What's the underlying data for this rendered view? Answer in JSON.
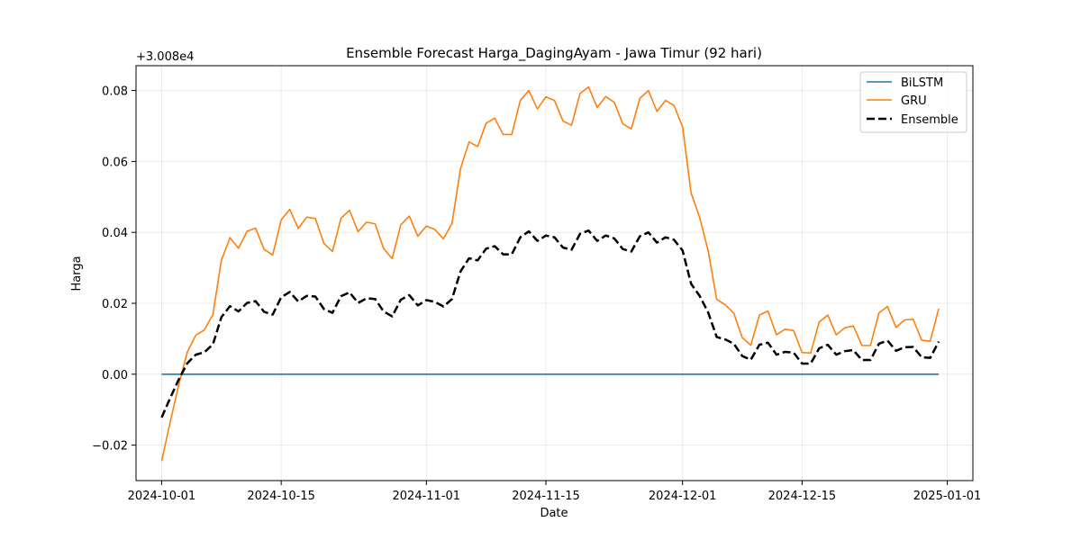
{
  "chart_data": {
    "type": "line",
    "title": "Ensemble Forecast Harga_DagingAyam - Jawa Timur (92 hari)",
    "xlabel": "Date",
    "ylabel": "Harga",
    "offset_label": "+3.008e4",
    "x_start": "2024-10-01",
    "x_ticks": [
      "2024-10-01",
      "2024-10-15",
      "2024-11-01",
      "2024-11-15",
      "2024-12-01",
      "2024-12-15",
      "2025-01-01"
    ],
    "y_ticks": [
      "−0.02",
      "0.00",
      "0.02",
      "0.04",
      "0.06",
      "0.08"
    ],
    "ylim": [
      -0.03,
      0.087
    ],
    "xlim": [
      "2024-09-28",
      "2025-01-04"
    ],
    "grid": true,
    "legend_position": "upper right",
    "series": [
      {
        "name": "BiLSTM",
        "color": "#1f77b4",
        "style": "solid",
        "values": [
          0,
          0,
          0,
          0,
          0,
          0,
          0,
          0,
          0,
          0,
          0,
          0,
          0,
          0,
          0,
          0,
          0,
          0,
          0,
          0,
          0,
          0,
          0,
          0,
          0,
          0,
          0,
          0,
          0,
          0,
          0,
          0,
          0,
          0,
          0,
          0,
          0,
          0,
          0,
          0,
          0,
          0,
          0,
          0,
          0,
          0,
          0,
          0,
          0,
          0,
          0,
          0,
          0,
          0,
          0,
          0,
          0,
          0,
          0,
          0,
          0,
          0,
          0,
          0,
          0,
          0,
          0,
          0,
          0,
          0,
          0,
          0,
          0,
          0,
          0,
          0,
          0,
          0,
          0,
          0,
          0,
          0,
          0,
          0,
          0,
          0,
          0,
          0,
          0,
          0,
          0,
          0
        ]
      },
      {
        "name": "GRU",
        "color": "#ff7f0e",
        "style": "solid",
        "values": [
          -0.0245,
          -0.0135,
          -0.003,
          0.0062,
          0.011,
          0.0125,
          0.0168,
          0.0322,
          0.0385,
          0.0355,
          0.0403,
          0.0412,
          0.0352,
          0.0336,
          0.0435,
          0.0465,
          0.0411,
          0.0443,
          0.0439,
          0.0369,
          0.0346,
          0.044,
          0.0462,
          0.0402,
          0.0429,
          0.0424,
          0.0354,
          0.0326,
          0.0421,
          0.0446,
          0.0389,
          0.0418,
          0.0408,
          0.0382,
          0.0425,
          0.058,
          0.0655,
          0.0642,
          0.0708,
          0.0722,
          0.0676,
          0.0676,
          0.0772,
          0.08,
          0.0748,
          0.0782,
          0.0772,
          0.0714,
          0.0702,
          0.0792,
          0.081,
          0.0752,
          0.0783,
          0.0767,
          0.0706,
          0.0692,
          0.0778,
          0.08,
          0.0741,
          0.0772,
          0.0758,
          0.0698,
          0.0511,
          0.0442,
          0.0348,
          0.0211,
          0.0196,
          0.0172,
          0.0103,
          0.0082,
          0.0167,
          0.0178,
          0.0111,
          0.0127,
          0.0123,
          0.0061,
          0.006,
          0.0147,
          0.0167,
          0.0111,
          0.0131,
          0.0136,
          0.0081,
          0.0081,
          0.0173,
          0.0191,
          0.0132,
          0.0153,
          0.0155,
          0.0096,
          0.0093,
          0.0185
        ]
      },
      {
        "name": "Ensemble",
        "color": "#000000",
        "style": "dashed",
        "values": [
          -0.0122,
          -0.0067,
          -0.0015,
          0.0031,
          0.0055,
          0.0062,
          0.0084,
          0.0161,
          0.0192,
          0.0177,
          0.0201,
          0.0206,
          0.0176,
          0.0168,
          0.0217,
          0.0232,
          0.0205,
          0.0221,
          0.0219,
          0.0184,
          0.0173,
          0.022,
          0.0231,
          0.0201,
          0.0214,
          0.0212,
          0.0177,
          0.0163,
          0.021,
          0.0223,
          0.0194,
          0.0209,
          0.0204,
          0.0191,
          0.0212,
          0.029,
          0.0327,
          0.0321,
          0.0354,
          0.0361,
          0.0338,
          0.0338,
          0.0386,
          0.0403,
          0.0376,
          0.0391,
          0.0386,
          0.0357,
          0.0351,
          0.0396,
          0.0405,
          0.0376,
          0.0391,
          0.0383,
          0.0353,
          0.0346,
          0.0389,
          0.04,
          0.0371,
          0.0386,
          0.0379,
          0.0349,
          0.0255,
          0.0221,
          0.0174,
          0.0105,
          0.0098,
          0.0086,
          0.0051,
          0.0041,
          0.0083,
          0.0089,
          0.0055,
          0.0063,
          0.0061,
          0.003,
          0.003,
          0.0073,
          0.0083,
          0.0055,
          0.0065,
          0.0068,
          0.004,
          0.004,
          0.0086,
          0.0095,
          0.0066,
          0.0076,
          0.0077,
          0.0048,
          0.0046,
          0.0092
        ]
      }
    ]
  }
}
